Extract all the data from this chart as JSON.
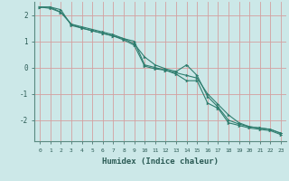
{
  "xlabel": "Humidex (Indice chaleur)",
  "x": [
    0,
    1,
    2,
    3,
    4,
    5,
    6,
    7,
    8,
    9,
    10,
    11,
    12,
    13,
    14,
    15,
    16,
    17,
    18,
    19,
    20,
    21,
    22,
    23
  ],
  "line1": [
    2.3,
    2.25,
    2.1,
    1.65,
    1.5,
    1.4,
    1.3,
    1.2,
    1.05,
    0.85,
    0.05,
    -0.05,
    -0.1,
    -0.25,
    -0.5,
    -0.5,
    -1.35,
    -1.55,
    -2.1,
    -2.2,
    -2.3,
    -2.35,
    -2.4,
    -2.55
  ],
  "line2": [
    2.3,
    2.3,
    2.2,
    1.6,
    1.5,
    1.4,
    1.3,
    1.2,
    1.1,
    1.0,
    0.1,
    0.0,
    -0.1,
    -0.2,
    -0.3,
    -0.4,
    -1.0,
    -1.4,
    -1.8,
    -2.1,
    -2.25,
    -2.3,
    -2.35,
    -2.5
  ],
  "line3": [
    2.3,
    2.3,
    2.1,
    1.65,
    1.55,
    1.45,
    1.35,
    1.25,
    1.1,
    0.9,
    0.4,
    0.1,
    -0.05,
    -0.15,
    0.1,
    -0.3,
    -1.1,
    -1.5,
    -2.0,
    -2.15,
    -2.25,
    -2.3,
    -2.35,
    -2.5
  ],
  "line_color": "#2e7d6e",
  "bg_color": "#cce8e8",
  "grid_color": "#d4a0a0",
  "ylim": [
    -2.8,
    2.5
  ],
  "yticks": [
    -2,
    -1,
    0,
    1,
    2
  ],
  "xlim": [
    -0.5,
    23.5
  ]
}
